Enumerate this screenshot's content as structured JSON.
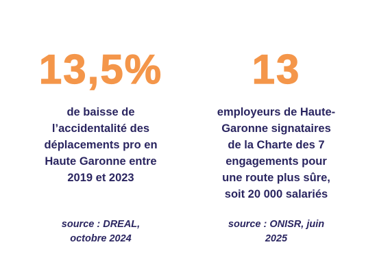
{
  "stats": [
    {
      "figure": "13,5%",
      "description_lines": [
        "de baisse de",
        "l’accidentalité des",
        "déplacements pro en",
        "Haute Garonne entre",
        "2019 et 2023"
      ],
      "source_lines": [
        "source : DREAL,",
        "octobre 2024"
      ]
    },
    {
      "figure": "13",
      "description_lines": [
        "employeurs de Haute-",
        "Garonne signataires",
        "de la Charte des 7",
        "engagements pour",
        "une route plus sûre,",
        "soit 20 000 salariés"
      ],
      "source_lines": [
        "source : ONISR, juin",
        "2025"
      ]
    }
  ],
  "colors": {
    "accent": "#f4964a",
    "text": "#2a2560",
    "background": "#ffffff"
  }
}
